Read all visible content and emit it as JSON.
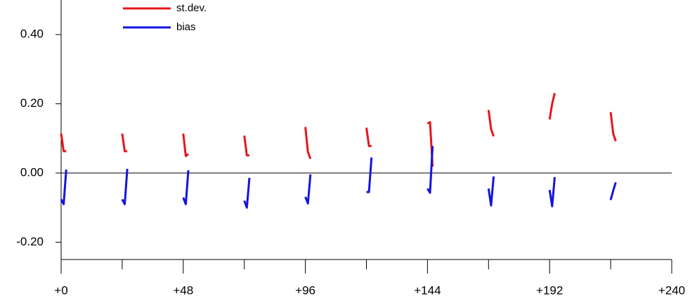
{
  "chart_data": {
    "type": "line",
    "x": [
      0,
      1,
      2,
      3,
      24,
      25,
      26,
      27,
      48,
      49,
      50,
      51,
      72,
      73,
      74,
      75,
      96,
      97,
      98,
      99,
      120,
      121,
      122,
      123,
      144,
      145,
      146,
      147,
      168,
      169,
      170,
      171,
      192,
      193,
      194,
      195,
      216,
      217,
      218
    ],
    "series": [
      {
        "name": "st.dev.",
        "color": "#e8141c",
        "values": [
          0.114,
          0.063,
          0.063,
          null,
          0.114,
          0.063,
          0.063,
          null,
          0.114,
          0.049,
          0.055,
          null,
          0.108,
          0.051,
          0.051,
          null,
          0.133,
          0.061,
          0.041,
          null,
          0.131,
          0.078,
          0.078,
          null,
          0.143,
          0.147,
          0.018,
          null,
          0.182,
          0.127,
          0.106,
          null,
          0.155,
          0.2,
          0.231,
          null,
          0.176,
          0.114,
          0.092
        ]
      },
      {
        "name": "bias",
        "color": "#1414e0",
        "values": [
          -0.076,
          -0.09,
          0.01,
          null,
          -0.076,
          -0.09,
          0.012,
          null,
          -0.071,
          -0.09,
          0.008,
          null,
          -0.08,
          -0.1,
          -0.014,
          null,
          -0.069,
          -0.088,
          -0.004,
          null,
          -0.055,
          -0.055,
          0.045,
          null,
          -0.045,
          -0.057,
          0.078,
          null,
          -0.045,
          -0.094,
          -0.01,
          null,
          -0.049,
          -0.096,
          -0.012,
          null,
          -0.078,
          -0.051,
          -0.027
        ]
      }
    ],
    "xlim": [
      0,
      240
    ],
    "xticks": [
      {
        "value": 0,
        "label": "+0"
      },
      {
        "value": 48,
        "label": "+48"
      },
      {
        "value": 96,
        "label": "+96"
      },
      {
        "value": 144,
        "label": "+144"
      },
      {
        "value": 192,
        "label": "+192"
      },
      {
        "value": 240,
        "label": "+240"
      }
    ],
    "xminorticks": [
      24,
      72,
      120,
      168,
      216
    ],
    "ylim": [
      -0.25,
      0.5
    ],
    "yticks": [
      {
        "value": -0.2,
        "label": "-0.20"
      },
      {
        "value": 0,
        "label": "0.00"
      },
      {
        "value": 0.2,
        "label": "0.20"
      },
      {
        "value": 0.4,
        "label": "0.40"
      }
    ],
    "hline": 0,
    "legend": "top-left"
  }
}
